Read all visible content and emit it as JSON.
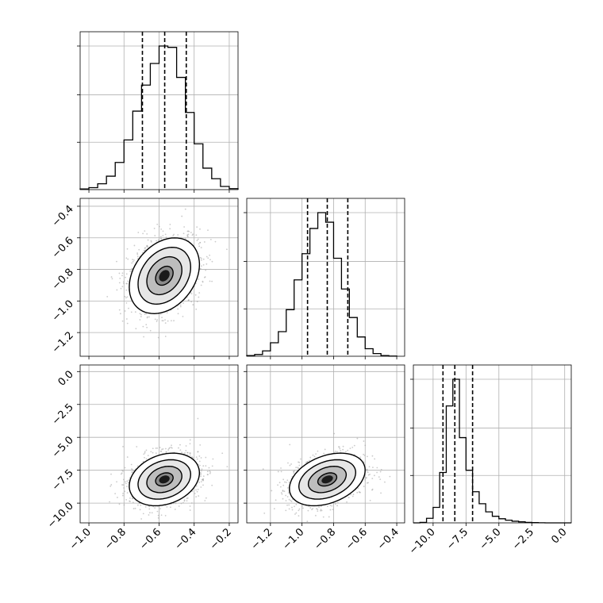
{
  "chart_data": {
    "type": "corner",
    "grid": true,
    "parameters": [
      {
        "range": [
          -1.05,
          -0.15
        ],
        "ticks": [
          -1.0,
          -0.8,
          -0.6,
          -0.4,
          -0.2
        ],
        "tick_labels": [
          "−1.0",
          "−0.8",
          "−0.6",
          "−0.4",
          "−0.2"
        ],
        "quantiles": [
          -0.695,
          -0.568,
          -0.445
        ],
        "hist_bins": [
          -1.05,
          -1.0,
          -0.95,
          -0.9,
          -0.85,
          -0.8,
          -0.75,
          -0.7,
          -0.65,
          -0.6,
          -0.55,
          -0.5,
          -0.45,
          -0.4,
          -0.35,
          -0.3,
          -0.25,
          -0.2,
          -0.15
        ],
        "hist_values": [
          0.4,
          1.2,
          3.5,
          8.0,
          16.2,
          29.6,
          46.8,
          62.3,
          75.2,
          85.6,
          84.8,
          66.9,
          46.0,
          27.3,
          12.8,
          6.5,
          1.9,
          0.6
        ]
      },
      {
        "range": [
          -1.35,
          -0.35
        ],
        "ticks": [
          -1.2,
          -1.0,
          -0.8,
          -0.6,
          -0.4
        ],
        "tick_labels": [
          "−1.2",
          "−1.0",
          "−0.8",
          "−0.6",
          "−0.4"
        ],
        "quantiles": [
          -0.965,
          -0.84,
          -0.71
        ],
        "hist_bins": [
          -1.35,
          -1.3,
          -1.25,
          -1.2,
          -1.15,
          -1.1,
          -1.05,
          -1.0,
          -0.95,
          -0.9,
          -0.85,
          -0.8,
          -0.75,
          -0.7,
          -0.65,
          -0.6,
          -0.55,
          -0.5,
          -0.45,
          -0.4
        ],
        "hist_values": [
          0.4,
          1.1,
          3.4,
          8.6,
          15.7,
          29.7,
          48.7,
          65.4,
          81.5,
          91.6,
          85.5,
          62.5,
          42.9,
          24.7,
          12.3,
          4.8,
          1.7,
          0.4,
          0.1
        ]
      },
      {
        "range": [
          -11.5,
          0.5
        ],
        "ticks": [
          -10.0,
          -7.5,
          -5.0,
          -2.5,
          0.0
        ],
        "tick_labels": [
          "−10.0",
          "−7.5",
          "−5.0",
          "−2.5",
          "0.0"
        ],
        "quantiles": [
          -9.25,
          -8.35,
          -7.0
        ],
        "hist_bins": [
          -11.5,
          -11.0,
          -10.5,
          -10.0,
          -9.5,
          -9.0,
          -8.5,
          -8.0,
          -7.5,
          -7.0,
          -6.5,
          -6.0,
          -5.5,
          -5.0,
          -4.5,
          -4.0,
          -3.5,
          -3.0,
          -2.5,
          -2.0,
          -1.5,
          -1.0,
          -0.5,
          0.0,
          0.5
        ],
        "hist_values": [
          0.0,
          0.4,
          3.9,
          13.2,
          42.9,
          99.6,
          122.3,
          72.6,
          44.8,
          26.5,
          16.3,
          9.4,
          5.6,
          3.5,
          2.3,
          1.4,
          0.9,
          0.4,
          0.2,
          0.1,
          0.0,
          0.0,
          0.0,
          0.0
        ]
      }
    ],
    "pairs": [
      {
        "x_param": 0,
        "y_param": 1,
        "mean": [
          -0.57,
          -0.84
        ],
        "std": [
          0.1,
          0.12
        ],
        "corr": 0.3,
        "levels_sigma": [
          0.5,
          1.0,
          1.5,
          2.0
        ]
      },
      {
        "x_param": 0,
        "y_param": 2,
        "mean": [
          -0.57,
          -8.2
        ],
        "std": [
          0.1,
          1.0
        ],
        "corr": 0.25,
        "levels_sigma": [
          0.5,
          1.0,
          1.5,
          2.0
        ]
      },
      {
        "x_param": 1,
        "y_param": 2,
        "mean": [
          -0.84,
          -8.2
        ],
        "std": [
          0.12,
          1.0
        ],
        "corr": 0.35,
        "levels_sigma": [
          0.5,
          1.0,
          1.5,
          2.0
        ]
      }
    ],
    "colors": {
      "line": "#000000",
      "grid": "#b0b0b0",
      "points": "#a9a9a9",
      "density_dark": "#1a1a1a"
    }
  }
}
